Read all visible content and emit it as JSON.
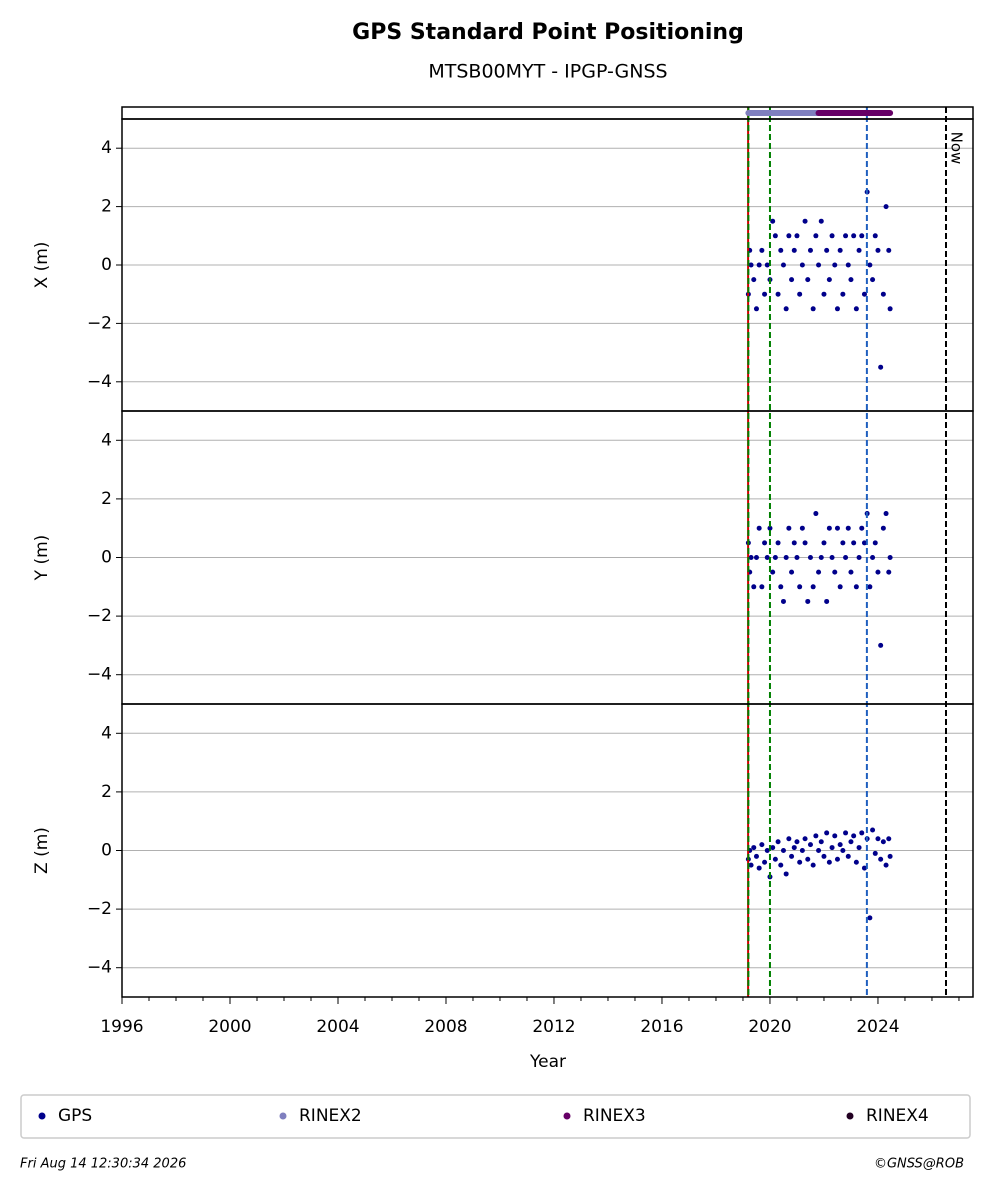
{
  "title": "GPS Standard Point Positioning",
  "subtitle": "MTSB00MYT - IPGP-GNSS",
  "xaxis": {
    "label": "Year",
    "xlim": [
      1996,
      2027.52
    ],
    "xticks": [
      1996,
      2000,
      2004,
      2008,
      2012,
      2016,
      2020,
      2024
    ],
    "xminorticks": [
      1997,
      1998,
      1999,
      2001,
      2002,
      2003,
      2005,
      2006,
      2007,
      2009,
      2010,
      2011,
      2013,
      2014,
      2015,
      2017,
      2018,
      2019,
      2021,
      2022,
      2023,
      2025,
      2026,
      2027
    ]
  },
  "chart_data": [
    {
      "type": "scatter",
      "ylabel": "X (m)",
      "color": "#00008b",
      "grid": true,
      "ylim": [
        -5,
        5
      ],
      "yticks": [
        {
          "value": -4,
          "label": "−4"
        },
        {
          "value": -2,
          "label": "−2"
        },
        0,
        2,
        4
      ],
      "x": [
        2019.2,
        2019.25,
        2019.3,
        2019.4,
        2019.5,
        2019.6,
        2019.7,
        2019.8,
        2019.9,
        2020.0,
        2020.1,
        2020.2,
        2020.3,
        2020.4,
        2020.5,
        2020.6,
        2020.7,
        2020.8,
        2020.9,
        2021.0,
        2021.1,
        2021.2,
        2021.3,
        2021.4,
        2021.5,
        2021.6,
        2021.7,
        2021.8,
        2021.9,
        2022.0,
        2022.1,
        2022.2,
        2022.3,
        2022.4,
        2022.5,
        2022.6,
        2022.7,
        2022.8,
        2022.9,
        2023.0,
        2023.1,
        2023.2,
        2023.3,
        2023.4,
        2023.5,
        2023.6,
        2023.7,
        2023.8,
        2023.9,
        2024.0,
        2024.1,
        2024.2,
        2024.3,
        2024.4,
        2024.45
      ],
      "values": [
        -1,
        0.5,
        0,
        -0.5,
        -1.5,
        0,
        0.5,
        -1,
        0,
        -0.5,
        1.5,
        1,
        -1,
        0.5,
        0,
        -1.5,
        1,
        -0.5,
        0.5,
        1,
        -1,
        0,
        1.5,
        -0.5,
        0.5,
        -1.5,
        1,
        0,
        1.5,
        -1,
        0.5,
        -0.5,
        1,
        0,
        -1.5,
        0.5,
        -1,
        1,
        0,
        -0.5,
        1,
        -1.5,
        0.5,
        1,
        -1,
        2.5,
        0,
        -0.5,
        1,
        0.5,
        -3.5,
        -1,
        2,
        0.5,
        -1.5
      ]
    },
    {
      "type": "scatter",
      "ylabel": "Y (m)",
      "color": "#00008b",
      "grid": true,
      "ylim": [
        -5,
        5
      ],
      "yticks": [
        {
          "value": -4,
          "label": "−4"
        },
        {
          "value": -2,
          "label": "−2"
        },
        0,
        2,
        4
      ],
      "x": [
        2019.2,
        2019.25,
        2019.3,
        2019.4,
        2019.5,
        2019.6,
        2019.7,
        2019.8,
        2019.9,
        2020.0,
        2020.1,
        2020.2,
        2020.3,
        2020.4,
        2020.5,
        2020.6,
        2020.7,
        2020.8,
        2020.9,
        2021.0,
        2021.1,
        2021.2,
        2021.3,
        2021.4,
        2021.5,
        2021.6,
        2021.7,
        2021.8,
        2021.9,
        2022.0,
        2022.1,
        2022.2,
        2022.3,
        2022.4,
        2022.5,
        2022.6,
        2022.7,
        2022.8,
        2022.9,
        2023.0,
        2023.1,
        2023.2,
        2023.3,
        2023.4,
        2023.5,
        2023.6,
        2023.7,
        2023.8,
        2023.9,
        2024.0,
        2024.1,
        2024.2,
        2024.3,
        2024.4,
        2024.45
      ],
      "values": [
        0.5,
        -0.5,
        0,
        -1,
        0,
        1,
        -1,
        0.5,
        0,
        1,
        -0.5,
        0,
        0.5,
        -1,
        -1.5,
        0,
        1,
        -0.5,
        0.5,
        0,
        -1,
        1,
        0.5,
        -1.5,
        0,
        -1,
        1.5,
        -0.5,
        0,
        0.5,
        -1.5,
        1,
        0,
        -0.5,
        1,
        -1,
        0.5,
        0,
        1,
        -0.5,
        0.5,
        -1,
        0,
        1,
        0.5,
        1.5,
        -1,
        0,
        0.5,
        -0.5,
        -3,
        1,
        1.5,
        -0.5,
        0
      ]
    },
    {
      "type": "scatter",
      "ylabel": "Z (m)",
      "color": "#00008b",
      "grid": true,
      "ylim": [
        -5,
        5
      ],
      "yticks": [
        {
          "value": -4,
          "label": "−4"
        },
        {
          "value": -2,
          "label": "−2"
        },
        0,
        2,
        4
      ],
      "x": [
        2019.2,
        2019.25,
        2019.3,
        2019.4,
        2019.5,
        2019.6,
        2019.7,
        2019.8,
        2019.9,
        2020.0,
        2020.1,
        2020.2,
        2020.3,
        2020.4,
        2020.5,
        2020.6,
        2020.7,
        2020.8,
        2020.9,
        2021.0,
        2021.1,
        2021.2,
        2021.3,
        2021.4,
        2021.5,
        2021.6,
        2021.7,
        2021.8,
        2021.9,
        2022.0,
        2022.1,
        2022.2,
        2022.3,
        2022.4,
        2022.5,
        2022.6,
        2022.7,
        2022.8,
        2022.9,
        2023.0,
        2023.1,
        2023.2,
        2023.3,
        2023.4,
        2023.5,
        2023.6,
        2023.7,
        2023.8,
        2023.9,
        2024.0,
        2024.1,
        2024.2,
        2024.3,
        2024.4,
        2024.45
      ],
      "values": [
        -0.3,
        0,
        -0.5,
        0.1,
        -0.2,
        -0.6,
        0.2,
        -0.4,
        0,
        -0.9,
        0.1,
        -0.3,
        0.3,
        -0.5,
        0,
        -0.8,
        0.4,
        -0.2,
        0.1,
        0.3,
        -0.4,
        0,
        0.4,
        -0.3,
        0.2,
        -0.5,
        0.5,
        0,
        0.3,
        -0.2,
        0.6,
        -0.4,
        0.1,
        0.5,
        -0.3,
        0.2,
        0,
        0.6,
        -0.2,
        0.3,
        0.5,
        -0.4,
        0.1,
        0.6,
        -0.6,
        0.4,
        -2.3,
        0.7,
        -0.1,
        0.4,
        -0.3,
        0.3,
        -0.5,
        0.4,
        -0.2
      ]
    }
  ],
  "availability": [
    {
      "start": 2019.2,
      "end": 2021.8,
      "color": "#7f7fbf"
    },
    {
      "start": 2021.8,
      "end": 2024.45,
      "color": "#660066"
    }
  ],
  "events": [
    {
      "x": 2019.19,
      "color": "#d00000",
      "dashed": false
    },
    {
      "x": 2019.2,
      "color": "#008000",
      "dashed": true
    },
    {
      "x": 2020.0,
      "color": "#008000",
      "dashed": true
    },
    {
      "x": 2023.59,
      "color": "#1f5fbf",
      "dashed": true
    },
    {
      "x": 2026.52,
      "color": "#000000",
      "dashed": true,
      "label": "Now"
    }
  ],
  "legend": [
    {
      "name": "GPS",
      "color": "#00008b"
    },
    {
      "name": "RINEX2",
      "color": "#7f7fbf"
    },
    {
      "name": "RINEX3",
      "color": "#660066"
    },
    {
      "name": "RINEX4",
      "color": "#220022"
    }
  ],
  "footer": {
    "left": "Fri Aug 14 12:30:34 2026",
    "right": "©GNSS@ROB"
  }
}
